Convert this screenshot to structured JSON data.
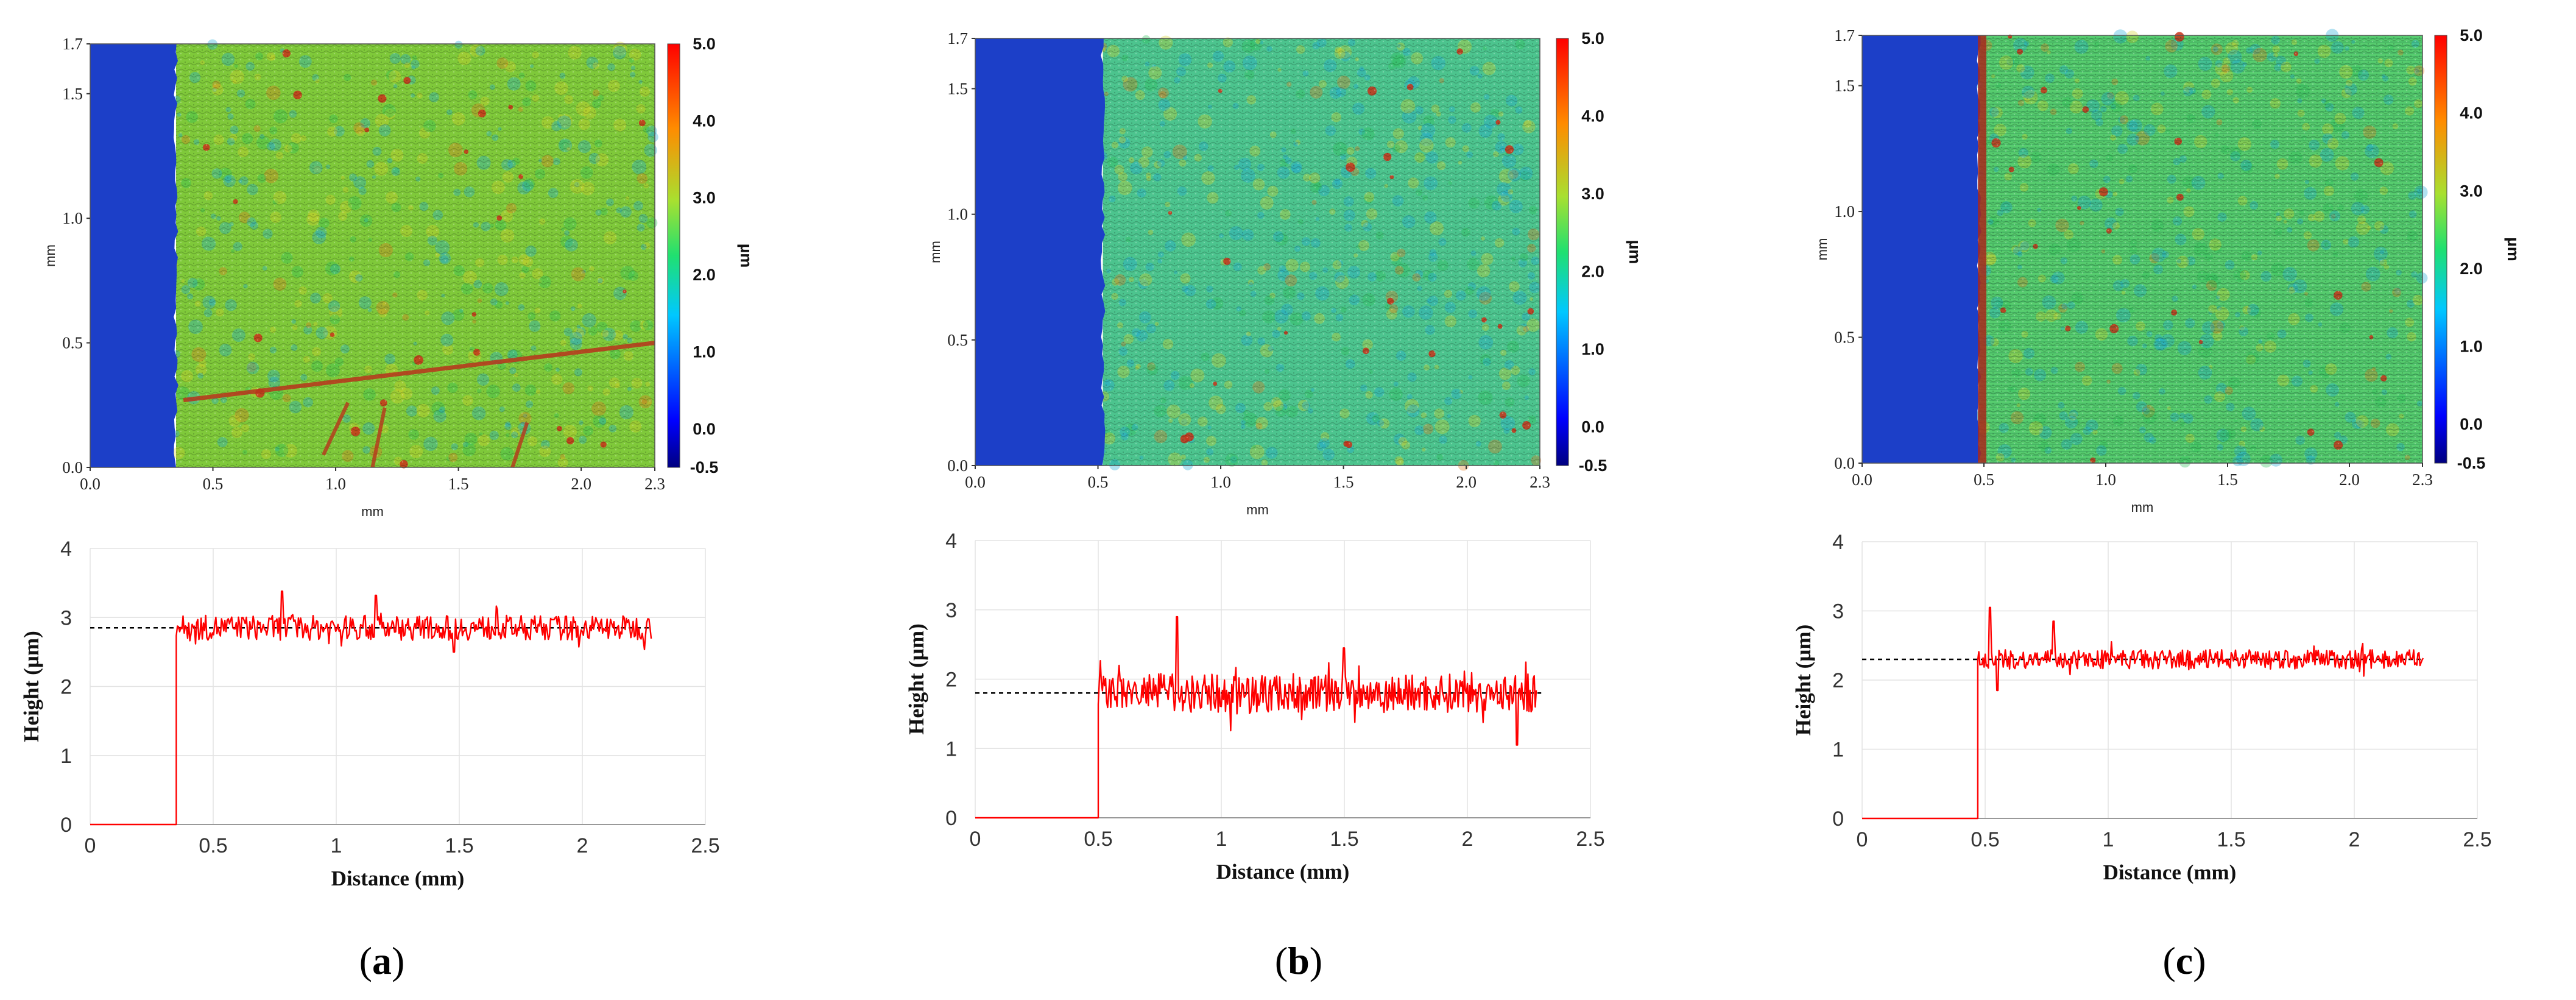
{
  "figure_label_prefix": "(",
  "figure_label_suffix": ")",
  "chart_data": [
    {
      "panel": "a",
      "type": "heatmap",
      "xlabel": "mm",
      "ylabel": "mm",
      "xlim": [
        0,
        2.3
      ],
      "ylim": [
        0,
        1.7
      ],
      "xticks": [
        "0.0",
        "0.5",
        "1.0",
        "1.5",
        "2.0",
        "2.3"
      ],
      "yticks": [
        "0.0",
        "0.5",
        "1.0",
        "1.5",
        "1.7"
      ],
      "colorbar": {
        "label": "µm",
        "min": -0.5,
        "max": 5.0,
        "ticks": [
          "-0.5",
          "0.0",
          "1.0",
          "2.0",
          "3.0",
          "4.0",
          "5.0"
        ]
      },
      "step_edge_mm": 0.35,
      "surface_color": "#7fc93a",
      "substrate_color": "#1c3fc8",
      "colormap": "jet"
    },
    {
      "panel": "a",
      "type": "line",
      "xlabel": "Distance (mm)",
      "ylabel": "Height (µm)",
      "xlim": [
        0,
        2.5
      ],
      "ylim": [
        0,
        4
      ],
      "xticks": [
        "0",
        "0.5",
        "1",
        "1.5",
        "2",
        "2.5"
      ],
      "yticks": [
        "0",
        "1",
        "2",
        "3",
        "4"
      ],
      "series": [
        {
          "name": "profile",
          "color": "#ff0000",
          "step_x": 0.35,
          "end_x": 2.28,
          "mean": 2.85,
          "noise": 0.18,
          "spikes": [
            [
              0.78,
              3.38
            ],
            [
              1.16,
              3.32
            ],
            [
              1.48,
              2.5
            ]
          ]
        },
        {
          "name": "mean",
          "style": "dashed",
          "color": "#000000",
          "y": 2.85,
          "x": [
            0.0,
            2.28
          ]
        }
      ]
    },
    {
      "panel": "b",
      "type": "heatmap",
      "xlabel": "mm",
      "ylabel": "mm",
      "xlim": [
        0,
        2.3
      ],
      "ylim": [
        0,
        1.7
      ],
      "xticks": [
        "0.0",
        "0.5",
        "1.0",
        "1.5",
        "2.0",
        "2.3"
      ],
      "yticks": [
        "0.0",
        "0.5",
        "1.0",
        "1.5",
        "1.7"
      ],
      "colorbar": {
        "label": "µm",
        "min": -0.5,
        "max": 5.0,
        "ticks": [
          "-0.5",
          "0.0",
          "1.0",
          "2.0",
          "3.0",
          "4.0",
          "5.0"
        ]
      },
      "step_edge_mm": 0.52,
      "surface_color": "#4cc48e",
      "substrate_color": "#1c3fc8",
      "colormap": "jet"
    },
    {
      "panel": "b",
      "type": "line",
      "xlabel": "Distance (mm)",
      "ylabel": "Height (µm)",
      "xlim": [
        0,
        2.5
      ],
      "ylim": [
        0,
        4
      ],
      "xticks": [
        "0",
        "0.5",
        "1",
        "1.5",
        "2",
        "2.5"
      ],
      "yticks": [
        "0",
        "1",
        "2",
        "3",
        "4"
      ],
      "series": [
        {
          "name": "profile",
          "color": "#ff0000",
          "step_x": 0.5,
          "end_x": 2.28,
          "mean": 1.8,
          "noise": 0.28,
          "spikes": [
            [
              0.82,
              2.9
            ],
            [
              1.5,
              2.45
            ],
            [
              2.2,
              1.05
            ]
          ]
        },
        {
          "name": "mean",
          "style": "dashed",
          "color": "#000000",
          "y": 1.8,
          "x": [
            0.0,
            2.3
          ]
        }
      ]
    },
    {
      "panel": "c",
      "type": "heatmap",
      "xlabel": "mm",
      "ylabel": "mm",
      "xlim": [
        0,
        2.3
      ],
      "ylim": [
        0,
        1.7
      ],
      "xticks": [
        "0.0",
        "0.5",
        "1.0",
        "1.5",
        "2.0",
        "2.3"
      ],
      "yticks": [
        "0.0",
        "0.5",
        "1.0",
        "1.5",
        "1.7"
      ],
      "colorbar": {
        "label": "µm",
        "min": -0.5,
        "max": 5.0,
        "ticks": [
          "-0.5",
          "0.0",
          "1.0",
          "2.0",
          "3.0",
          "4.0",
          "5.0"
        ]
      },
      "step_edge_mm": 0.48,
      "surface_color": "#56cc6e",
      "substrate_color": "#1c3fc8",
      "colormap": "jet"
    },
    {
      "panel": "c",
      "type": "line",
      "xlabel": "Distance (mm)",
      "ylabel": "Height (µm)",
      "xlim": [
        0,
        2.5
      ],
      "ylim": [
        0,
        4
      ],
      "xticks": [
        "0",
        "0.5",
        "1",
        "1.5",
        "2",
        "2.5"
      ],
      "yticks": [
        "0",
        "1",
        "2",
        "3",
        "4"
      ],
      "series": [
        {
          "name": "profile",
          "color": "#ff0000",
          "step_x": 0.47,
          "end_x": 2.28,
          "mean": 2.3,
          "noise": 0.14,
          "spikes": [
            [
              0.52,
              3.05
            ],
            [
              0.55,
              1.85
            ],
            [
              0.78,
              2.85
            ]
          ]
        },
        {
          "name": "mean",
          "style": "dashed",
          "color": "#000000",
          "y": 2.3,
          "x": [
            0.0,
            2.28
          ]
        }
      ]
    }
  ]
}
